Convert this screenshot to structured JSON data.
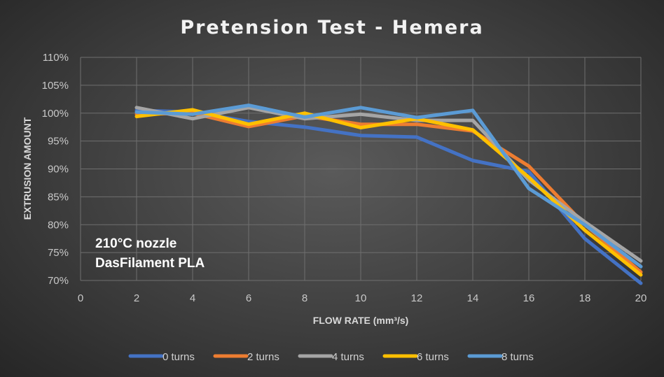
{
  "chart_data": {
    "type": "line",
    "title": "Pretension Test - Hemera",
    "xlabel": "FLOW RATE (mm³/s)",
    "ylabel": "EXTRUSION AMOUNT",
    "xlim": [
      0,
      20
    ],
    "ylim": [
      70,
      110
    ],
    "x_ticks": [
      0,
      2,
      4,
      6,
      8,
      10,
      12,
      14,
      16,
      18,
      20
    ],
    "y_ticks": [
      70,
      75,
      80,
      85,
      90,
      95,
      100,
      105,
      110
    ],
    "y_tick_suffix": "%",
    "grid": true,
    "legend_position": "bottom",
    "annotations": [
      "210°C nozzle",
      "DasFilament PLA"
    ],
    "x": [
      2,
      4,
      6,
      8,
      10,
      12,
      14,
      16,
      18,
      20
    ],
    "series": [
      {
        "name": "0 turns",
        "color": "#4472C4",
        "values": [
          100.5,
          100.2,
          98.5,
          97.5,
          96.0,
          95.7,
          91.5,
          89.5,
          77.5,
          69.5
        ]
      },
      {
        "name": "2 turns",
        "color": "#ED7D31",
        "values": [
          99.8,
          100.0,
          97.6,
          99.5,
          98.0,
          98.0,
          96.8,
          90.5,
          80.0,
          71.5
        ]
      },
      {
        "name": "4 turns",
        "color": "#A5A5A5",
        "values": [
          101.0,
          99.0,
          101.0,
          99.0,
          99.8,
          98.7,
          98.7,
          88.0,
          80.5,
          73.5
        ]
      },
      {
        "name": "6 turns",
        "color": "#FFC000",
        "values": [
          99.4,
          100.6,
          98.0,
          100.0,
          97.4,
          99.0,
          97.0,
          88.5,
          79.0,
          71.0
        ]
      },
      {
        "name": "8 turns",
        "color": "#5B9BD5",
        "values": [
          100.2,
          99.8,
          101.4,
          99.3,
          101.0,
          99.2,
          100.5,
          86.5,
          80.0,
          72.5
        ]
      }
    ]
  }
}
